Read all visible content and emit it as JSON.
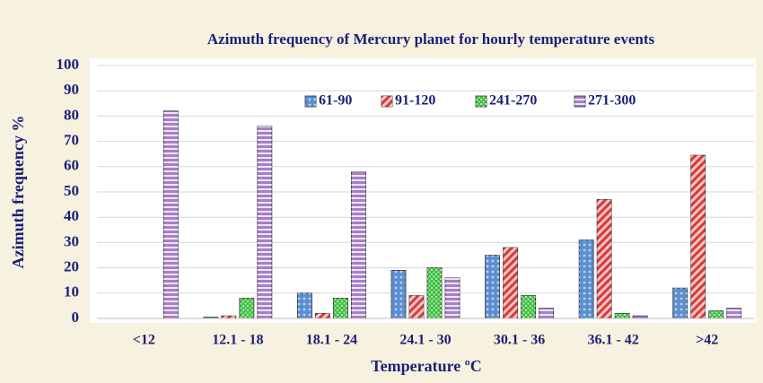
{
  "chart_data": {
    "type": "bar",
    "title": "Azimuth frequency of Mercury planet for hourly temperature events",
    "x_label": "Temperature ºC",
    "y_label": "Azimuth frequency %",
    "categories": [
      "<12",
      "12.1 - 18",
      "18.1 - 24",
      "24.1 - 30",
      "30.1 - 36",
      "36.1 - 42",
      ">42"
    ],
    "series": [
      {
        "name": "61-90",
        "color": "#5b8fd1",
        "values": [
          0,
          0.5,
          10,
          19,
          25,
          31,
          12
        ]
      },
      {
        "name": "91-120",
        "color": "#d93a3a",
        "values": [
          0,
          1,
          2,
          9,
          28,
          47,
          64.5
        ]
      },
      {
        "name": "241-270",
        "color": "#3fbf3f",
        "values": [
          0,
          8,
          8,
          20,
          9,
          2,
          3
        ]
      },
      {
        "name": "271-300",
        "color": "#a77fc9",
        "values": [
          82,
          76,
          58,
          16,
          4,
          1,
          4
        ]
      }
    ],
    "ylim": [
      0,
      100
    ],
    "yticks": [
      0,
      10,
      20,
      30,
      40,
      50,
      60,
      70,
      80,
      90,
      100
    ],
    "grid": true,
    "legend": "top"
  }
}
